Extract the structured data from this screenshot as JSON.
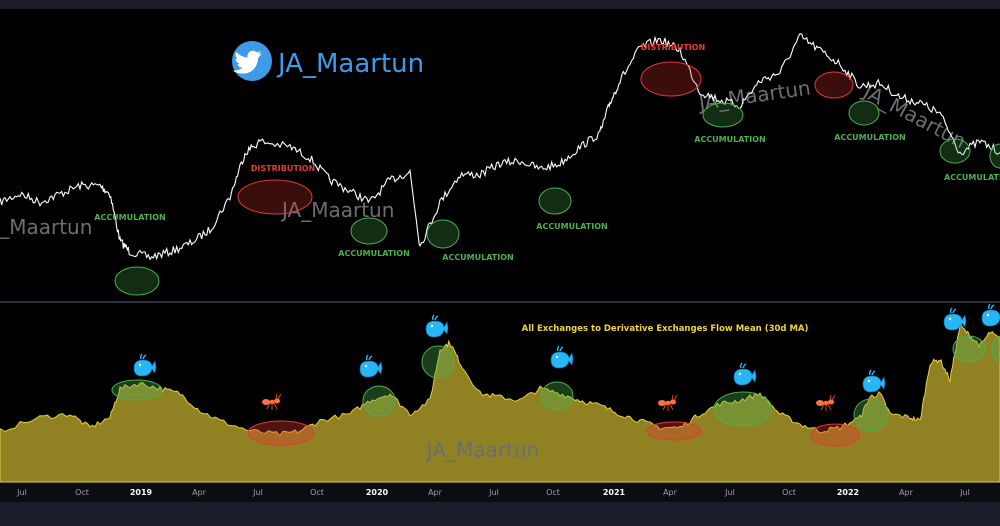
{
  "header": {
    "twitter_handle": "JA_Maartun"
  },
  "watermark": "JA_Maartun",
  "colors": {
    "background": "#000000",
    "frame": "#1c1f2b",
    "price_line": "#ffffff",
    "flow_fill": "#b8a52c",
    "accumulation": "#4caf50",
    "distribution": "#e53935",
    "whale": "#29b6f6",
    "ant": "#ff7043"
  },
  "chart_data": [
    {
      "type": "line",
      "series": [
        {
          "values": [
            [
              0,
              0.66
            ],
            [
              0.02,
              0.63
            ],
            [
              0.04,
              0.66
            ],
            [
              0.06,
              0.63
            ],
            [
              0.08,
              0.6
            ],
            [
              0.1,
              0.6
            ],
            [
              0.11,
              0.63
            ],
            [
              0.12,
              0.8
            ],
            [
              0.13,
              0.84
            ],
            [
              0.15,
              0.86
            ],
            [
              0.17,
              0.84
            ],
            [
              0.19,
              0.81
            ],
            [
              0.21,
              0.76
            ],
            [
              0.23,
              0.64
            ],
            [
              0.245,
              0.48
            ],
            [
              0.26,
              0.44
            ],
            [
              0.29,
              0.46
            ],
            [
              0.31,
              0.5
            ],
            [
              0.33,
              0.58
            ],
            [
              0.35,
              0.62
            ],
            [
              0.37,
              0.66
            ],
            [
              0.39,
              0.58
            ],
            [
              0.41,
              0.55
            ],
            [
              0.42,
              0.82
            ],
            [
              0.44,
              0.66
            ],
            [
              0.46,
              0.56
            ],
            [
              0.48,
              0.56
            ],
            [
              0.5,
              0.52
            ],
            [
              0.52,
              0.51
            ],
            [
              0.54,
              0.54
            ],
            [
              0.56,
              0.52
            ],
            [
              0.58,
              0.46
            ],
            [
              0.6,
              0.41
            ],
            [
              0.61,
              0.3
            ],
            [
              0.62,
              0.22
            ],
            [
              0.64,
              0.1
            ],
            [
              0.66,
              0.07
            ],
            [
              0.68,
              0.11
            ],
            [
              0.7,
              0.26
            ],
            [
              0.72,
              0.29
            ],
            [
              0.74,
              0.31
            ],
            [
              0.76,
              0.22
            ],
            [
              0.78,
              0.19
            ],
            [
              0.8,
              0.06
            ],
            [
              0.82,
              0.11
            ],
            [
              0.84,
              0.16
            ],
            [
              0.86,
              0.24
            ],
            [
              0.88,
              0.23
            ],
            [
              0.9,
              0.28
            ],
            [
              0.92,
              0.3
            ],
            [
              0.94,
              0.34
            ],
            [
              0.96,
              0.48
            ],
            [
              0.98,
              0.44
            ],
            [
              1.0,
              0.48
            ]
          ]
        }
      ],
      "annotations": [
        {
          "label": "ACCUMULATION",
          "kind": "accumulation"
        },
        {
          "label": "DISTRIBUTION",
          "kind": "distribution"
        },
        {
          "label": "ACCUMULATION",
          "kind": "accumulation"
        },
        {
          "label": "ACCUMULATION",
          "kind": "accumulation"
        },
        {
          "label": "ACCUMULATION",
          "kind": "accumulation"
        },
        {
          "label": "DISTRIBUTION",
          "kind": "distribution"
        },
        {
          "label": "ACCUMULATION",
          "kind": "accumulation"
        },
        {
          "label": "ACCUMULATION",
          "kind": "accumulation"
        },
        {
          "label": "ACCUMULATION",
          "kind": "accumulation"
        }
      ]
    },
    {
      "type": "area",
      "title": "All Exchanges to Derivative Exchanges Flow Mean (30d MA)",
      "series": [
        {
          "values": [
            [
              0,
              0.3
            ],
            [
              0.04,
              0.38
            ],
            [
              0.07,
              0.4
            ],
            [
              0.09,
              0.32
            ],
            [
              0.11,
              0.38
            ],
            [
              0.12,
              0.55
            ],
            [
              0.14,
              0.58
            ],
            [
              0.16,
              0.55
            ],
            [
              0.18,
              0.52
            ],
            [
              0.2,
              0.42
            ],
            [
              0.22,
              0.36
            ],
            [
              0.25,
              0.3
            ],
            [
              0.28,
              0.28
            ],
            [
              0.3,
              0.3
            ],
            [
              0.32,
              0.36
            ],
            [
              0.35,
              0.4
            ],
            [
              0.37,
              0.48
            ],
            [
              0.39,
              0.52
            ],
            [
              0.41,
              0.4
            ],
            [
              0.43,
              0.48
            ],
            [
              0.44,
              0.78
            ],
            [
              0.45,
              0.82
            ],
            [
              0.46,
              0.7
            ],
            [
              0.48,
              0.52
            ],
            [
              0.5,
              0.5
            ],
            [
              0.52,
              0.48
            ],
            [
              0.54,
              0.55
            ],
            [
              0.56,
              0.52
            ],
            [
              0.58,
              0.48
            ],
            [
              0.6,
              0.45
            ],
            [
              0.62,
              0.4
            ],
            [
              0.64,
              0.36
            ],
            [
              0.66,
              0.32
            ],
            [
              0.68,
              0.32
            ],
            [
              0.7,
              0.4
            ],
            [
              0.72,
              0.46
            ],
            [
              0.74,
              0.48
            ],
            [
              0.76,
              0.52
            ],
            [
              0.78,
              0.4
            ],
            [
              0.8,
              0.34
            ],
            [
              0.82,
              0.3
            ],
            [
              0.84,
              0.32
            ],
            [
              0.86,
              0.38
            ],
            [
              0.87,
              0.5
            ],
            [
              0.88,
              0.52
            ],
            [
              0.89,
              0.4
            ],
            [
              0.91,
              0.38
            ],
            [
              0.92,
              0.36
            ],
            [
              0.93,
              0.7
            ],
            [
              0.94,
              0.72
            ],
            [
              0.95,
              0.6
            ],
            [
              0.96,
              0.92
            ],
            [
              0.97,
              0.86
            ],
            [
              0.98,
              0.8
            ],
            [
              0.99,
              0.88
            ],
            [
              1.0,
              0.84
            ]
          ]
        }
      ],
      "x_tick_labels": [
        "Jul",
        "Oct",
        "2019",
        "Apr",
        "Jul",
        "Oct",
        "2020",
        "Apr",
        "Jul",
        "Oct",
        "2021",
        "Apr",
        "Jul",
        "Oct",
        "2022",
        "Apr",
        "Jul"
      ],
      "markers": [
        {
          "kind": "whale"
        },
        {
          "kind": "ant"
        },
        {
          "kind": "whale"
        },
        {
          "kind": "whale"
        },
        {
          "kind": "whale"
        },
        {
          "kind": "ant"
        },
        {
          "kind": "whale"
        },
        {
          "kind": "ant"
        },
        {
          "kind": "whale"
        },
        {
          "kind": "whale"
        },
        {
          "kind": "whale"
        }
      ]
    }
  ]
}
